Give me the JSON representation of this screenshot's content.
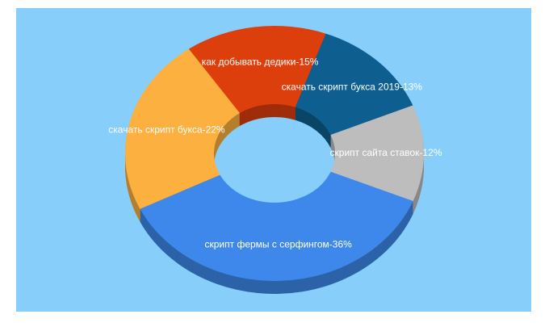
{
  "chart_data": {
    "type": "donut3d",
    "value_labels": [
      "как добывать дедики-15%",
      "скачать скрипт букса 2019-13%",
      "скрипт сайта ставок-12%",
      "скрипт фермы с серфингом-36%",
      "скачать скрипт букса-22%"
    ],
    "values": [
      15,
      13,
      12,
      36,
      22
    ],
    "colors": [
      "#dc3f0c",
      "#0e5f8f",
      "#bdbdbd",
      "#3d88ea",
      "#fbb03f"
    ],
    "background": "#87cefa"
  }
}
